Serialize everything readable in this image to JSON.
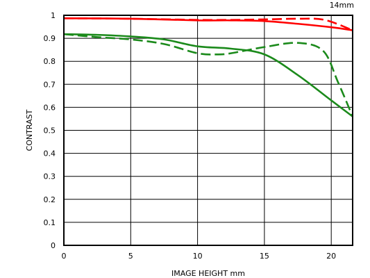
{
  "chart_data": {
    "type": "line",
    "title": "",
    "corner_label": "14mm",
    "xlabel": "IMAGE HEIGHT   mm",
    "ylabel": "CONTRAST",
    "xlim": [
      0,
      21.6
    ],
    "ylim": [
      0,
      1
    ],
    "x_ticks": [
      0,
      5,
      10,
      15,
      20
    ],
    "y_ticks": [
      0,
      0.1,
      0.2,
      0.3,
      0.4,
      0.5,
      0.6,
      0.7,
      0.8,
      0.9,
      1
    ],
    "x_tick_labels": [
      "0",
      "5",
      "10",
      "15",
      "20"
    ],
    "y_tick_labels": [
      "0",
      "0.1",
      "0.2",
      "0.3",
      "0.4",
      "0.5",
      "0.6",
      "0.7",
      "0.8",
      "0.9",
      "1"
    ],
    "grid": true,
    "series": [
      {
        "color": "#ff0000",
        "dash": "solid",
        "x": [
          0,
          5,
          10,
          12.5,
          15,
          17.5,
          20,
          21.6
        ],
        "y": [
          0.987,
          0.985,
          0.978,
          0.978,
          0.975,
          0.963,
          0.948,
          0.935
        ]
      },
      {
        "color": "#ff0000",
        "dash": "dashed",
        "x": [
          0,
          5,
          10,
          12.5,
          15,
          17.5,
          19.5,
          21.6
        ],
        "y": [
          0.987,
          0.985,
          0.98,
          0.98,
          0.982,
          0.985,
          0.98,
          0.935
        ]
      },
      {
        "color": "#1b8a1b",
        "dash": "solid",
        "x": [
          0,
          2.5,
          5,
          7.5,
          10,
          12.5,
          15,
          17.5,
          20,
          21.6
        ],
        "y": [
          0.918,
          0.915,
          0.908,
          0.895,
          0.865,
          0.855,
          0.83,
          0.74,
          0.63,
          0.56
        ]
      },
      {
        "color": "#1b8a1b",
        "dash": "dashed",
        "x": [
          0,
          2.5,
          5,
          7.5,
          10,
          11.5,
          12.5,
          15,
          17.5,
          19.4,
          20.5,
          21.6
        ],
        "y": [
          0.918,
          0.905,
          0.895,
          0.875,
          0.835,
          0.83,
          0.835,
          0.862,
          0.88,
          0.845,
          0.71,
          0.56
        ]
      }
    ]
  }
}
